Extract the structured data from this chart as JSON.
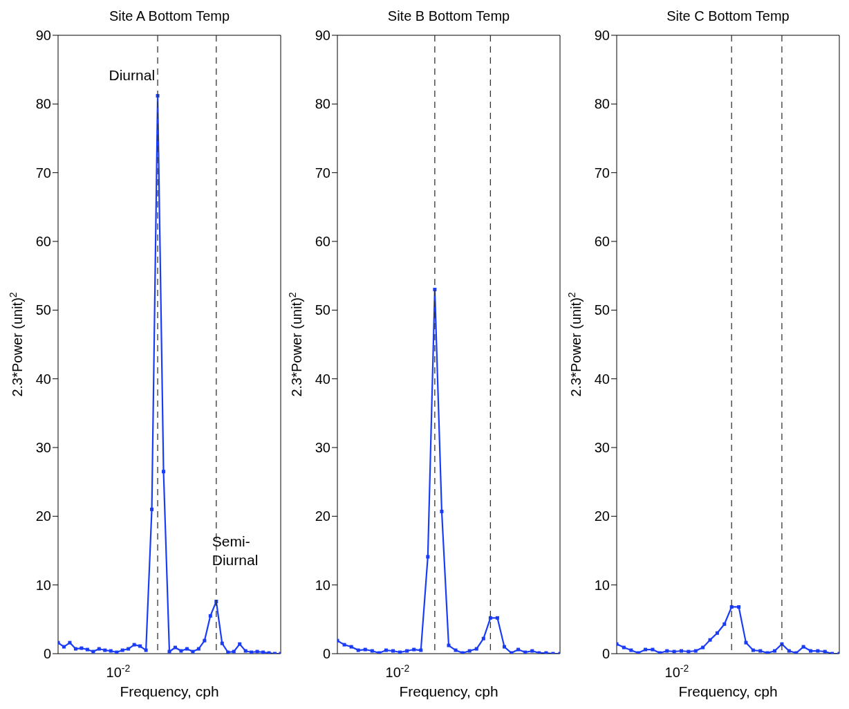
{
  "chart_data": [
    {
      "type": "line",
      "title": "Site A Bottom Temp",
      "xlabel": "Frequency, cph",
      "ylabel": "2.3*Power (unit)$^{2}$",
      "ylim": [
        0,
        90
      ],
      "yticks": [
        0,
        10,
        20,
        30,
        40,
        50,
        60,
        70,
        80,
        90
      ],
      "grid": false,
      "legend": false,
      "marker": "square",
      "line_style": "solid",
      "categories": [
        null,
        null,
        null,
        null,
        null,
        null,
        null,
        null,
        null,
        null,
        null,
        null,
        null,
        null,
        null,
        null,
        null,
        null,
        null,
        null,
        null,
        null,
        null,
        null,
        null,
        null,
        null,
        null,
        null,
        null,
        null,
        null,
        null,
        null,
        null,
        null,
        null,
        null,
        null
      ],
      "series": [
        {
          "color": "#1a3cf5",
          "values": [
            1.6,
            1.0,
            1.6,
            0.7,
            0.8,
            0.6,
            0.3,
            0.7,
            0.5,
            0.4,
            0.2,
            0.5,
            0.7,
            1.3,
            1.1,
            0.5,
            21,
            81.2,
            26.5,
            0.3,
            0.9,
            0.4,
            0.7,
            0.3,
            0.7,
            1.9,
            5.5,
            7.6,
            1.5,
            0.2,
            0.3,
            1.4,
            0.4,
            0.2,
            0.3,
            0.2,
            0.1,
            0,
            0
          ]
        }
      ],
      "annotations": [
        "Diurnal",
        "Semi-\nDiurnal",
        "10$^{-2}$"
      ]
    },
    {
      "type": "line",
      "title": "Site B Bottom Temp",
      "xlabel": "Frequency, cph",
      "ylabel": "2.3*Power (unit)$^{2}$",
      "ylim": [
        0,
        90
      ],
      "yticks": [
        0,
        10,
        20,
        30,
        40,
        50,
        60,
        70,
        80,
        90
      ],
      "grid": false,
      "legend": false,
      "marker": "square",
      "line_style": "solid",
      "categories": [
        null,
        null,
        null,
        null,
        null,
        null,
        null,
        null,
        null,
        null,
        null,
        null,
        null,
        null,
        null,
        null,
        null,
        null,
        null,
        null,
        null,
        null,
        null,
        null,
        null,
        null,
        null,
        null,
        null,
        null,
        null,
        null,
        null
      ],
      "series": [
        {
          "color": "#1a3cf5",
          "values": [
            1.9,
            1.3,
            1.0,
            0.5,
            0.6,
            0.4,
            0.1,
            0.5,
            0.4,
            0.2,
            0.4,
            0.6,
            0.5,
            14.1,
            53,
            20.7,
            1.2,
            0.5,
            0.1,
            0.4,
            0.7,
            2.2,
            5.2,
            5.2,
            1.0,
            0.1,
            0.6,
            0.2,
            0.4,
            0.1,
            0.1,
            0,
            0
          ]
        }
      ],
      "annotations": [
        "10$^{-2}$"
      ]
    },
    {
      "type": "line",
      "title": "Site C Bottom Temp",
      "xlabel": "Frequency, cph",
      "ylabel": "2.3*Power (unit)$^{2}$",
      "ylim": [
        0,
        90
      ],
      "yticks": [
        0,
        10,
        20,
        30,
        40,
        50,
        60,
        70,
        80,
        90
      ],
      "grid": false,
      "legend": false,
      "marker": "square",
      "line_style": "solid",
      "categories": [
        null,
        null,
        null,
        null,
        null,
        null,
        null,
        null,
        null,
        null,
        null,
        null,
        null,
        null,
        null,
        null,
        null,
        null,
        null,
        null,
        null,
        null,
        null,
        null,
        null,
        null,
        null,
        null,
        null,
        null,
        null,
        null
      ],
      "series": [
        {
          "color": "#1a3cf5",
          "values": [
            1.4,
            0.9,
            0.5,
            0.1,
            0.6,
            0.6,
            0.1,
            0.4,
            0.3,
            0.4,
            0.3,
            0.4,
            0.9,
            2.0,
            3.0,
            4.3,
            6.8,
            6.8,
            1.6,
            0.5,
            0.4,
            0.1,
            0.4,
            1.4,
            0.4,
            0.1,
            1.0,
            0.4,
            0.4,
            0.3,
            0,
            0
          ]
        }
      ],
      "annotations": [
        "10$^{-2}$"
      ]
    }
  ]
}
